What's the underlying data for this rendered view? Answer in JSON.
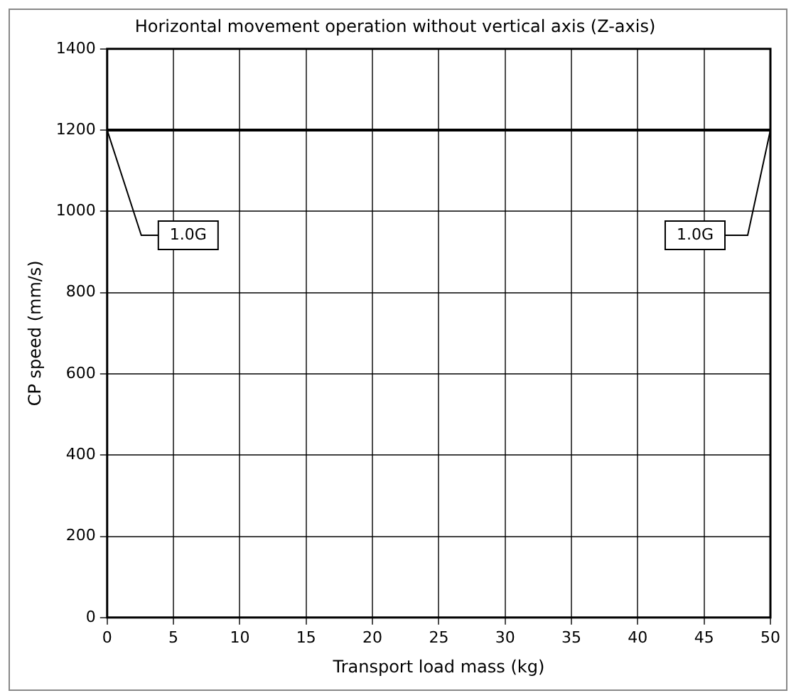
{
  "chart_data": {
    "type": "line",
    "title": "Horizontal movement operation without vertical axis (Z-axis)",
    "xlabel": "Transport load mass (kg)",
    "ylabel": "CP speed (mm/s)",
    "x": [
      0,
      50
    ],
    "series": [
      {
        "color": "#000000",
        "values": [
          1200,
          1200
        ]
      }
    ],
    "xlim": [
      0,
      50
    ],
    "xticks": [
      0,
      5,
      10,
      15,
      20,
      25,
      30,
      35,
      40,
      45,
      50
    ],
    "ylim": [
      0,
      1400
    ],
    "yticks": [
      0,
      200,
      400,
      600,
      800,
      1000,
      1200,
      1400
    ],
    "grid": true,
    "legend": false,
    "marker": "none",
    "line_style": "solid",
    "annotations": [
      {
        "text": "1.0G",
        "x": 0,
        "y": 1200
      },
      {
        "text": "1.0G",
        "x": 50,
        "y": 1200
      }
    ]
  }
}
